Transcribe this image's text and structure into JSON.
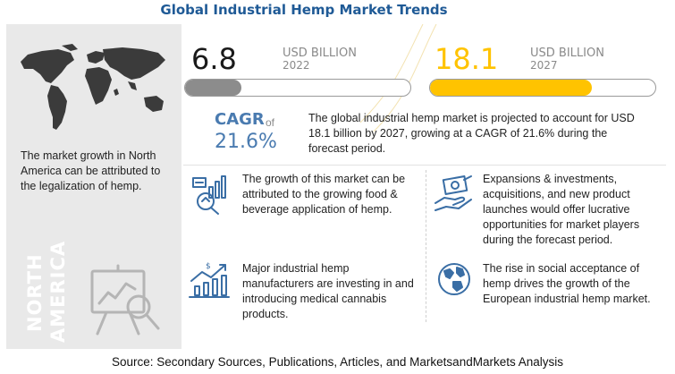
{
  "title": "Global Industrial Hemp Market Trends",
  "stats": {
    "y2022": {
      "value": "6.8",
      "unit": "USD BILLION",
      "year": "2022",
      "fill": 0.25,
      "fill_color": "#8c8c8c",
      "value_color": "#1a1a1a"
    },
    "y2027": {
      "value": "18.1",
      "unit": "USD BILLION",
      "year": "2027",
      "fill": 0.72,
      "fill_color": "#ffc300",
      "value_color": "#ffc300"
    }
  },
  "cagr": {
    "label": "CAGR",
    "of": "of",
    "value": "21.6%",
    "text": "The global industrial hemp market is projected to account for USD 18.1 billion by 2027, growing at a CAGR of 21.6% during the forecast period."
  },
  "north_america": {
    "text": "The market growth in North America can be attributed to the legalization of hemp.",
    "label_line1": "NORTH",
    "label_line2": "AMERICA"
  },
  "points": [
    {
      "icon": "chart-analysis-icon",
      "text": "The growth of this market can be attributed to the growing food & beverage application of hemp."
    },
    {
      "icon": "money-hand-icon",
      "text": "Expansions & investments, acquisitions, and new product launches would offer lucrative opportunities for market players during the forecast period."
    },
    {
      "icon": "growth-chart-icon",
      "text": "Major industrial hemp manufacturers are investing in and introducing medical cannabis products."
    },
    {
      "icon": "globe-icon",
      "text": "The rise in social acceptance of hemp drives the growth of the European industrial hemp market."
    }
  ],
  "colors": {
    "accent": "#1f5a96",
    "icon": "#3a6ea5",
    "yellow": "#ffc300"
  },
  "source": "Source: Secondary Sources, Publications, Articles, and MarketsandMarkets Analysis"
}
